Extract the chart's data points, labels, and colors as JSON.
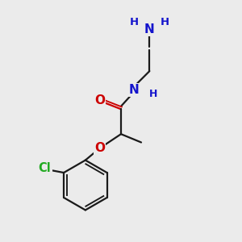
{
  "bg_color": "#ebebeb",
  "atom_colors": {
    "C": "#000000",
    "N": "#1414cc",
    "O": "#cc0000",
    "Cl": "#22aa22",
    "H": "#1414cc"
  },
  "bond_color": "#1a1a1a",
  "bond_width": 1.6,
  "font_size": 10.5,
  "small_font_size": 9.0
}
